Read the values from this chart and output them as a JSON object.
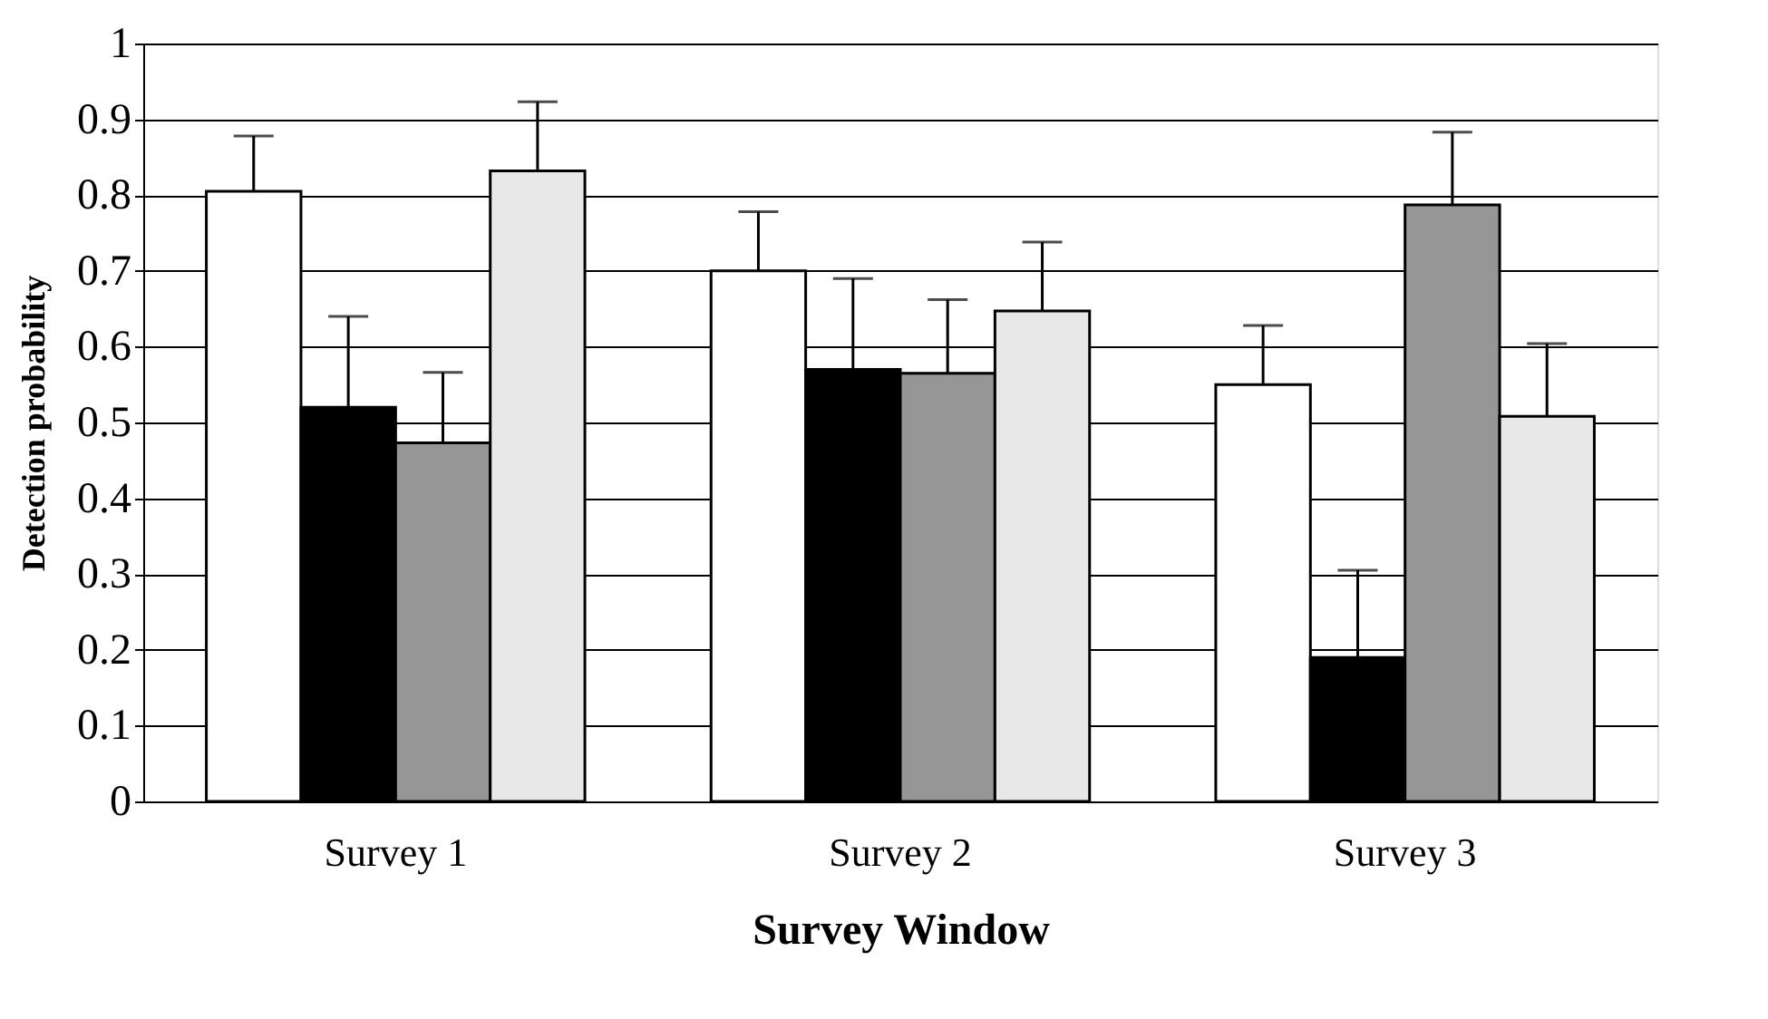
{
  "chart_data": {
    "type": "bar",
    "xlabel": "Survey Window",
    "ylabel": "Detection probability",
    "categories": [
      "Survey 1",
      "Survey 2",
      "Survey 3"
    ],
    "series": [
      {
        "color": "#ffffff",
        "values": [
          0.805,
          0.7,
          0.55
        ],
        "errors": [
          [
            0.805,
            0.878
          ],
          [
            0.7,
            0.778
          ],
          [
            0.55,
            0.628
          ]
        ]
      },
      {
        "color": "#000000",
        "values": [
          0.52,
          0.57,
          0.19
        ],
        "errors": [
          [
            0.52,
            0.64
          ],
          [
            0.57,
            0.69
          ],
          [
            0.19,
            0.305
          ]
        ]
      },
      {
        "color": "#969696",
        "values": [
          0.473,
          0.565,
          0.787
        ],
        "errors": [
          [
            0.473,
            0.566
          ],
          [
            0.565,
            0.662
          ],
          [
            0.787,
            0.883
          ]
        ]
      },
      {
        "color": "#e8e8e8",
        "values": [
          0.832,
          0.647,
          0.508
        ],
        "errors": [
          [
            0.832,
            0.923
          ],
          [
            0.647,
            0.738
          ],
          [
            0.508,
            0.604
          ]
        ]
      }
    ],
    "ylim": [
      0,
      1
    ],
    "yticks": [
      0,
      0.1,
      0.2,
      0.3,
      0.4,
      0.5,
      0.6,
      0.7,
      0.8,
      0.9,
      1
    ],
    "grid": "y"
  }
}
